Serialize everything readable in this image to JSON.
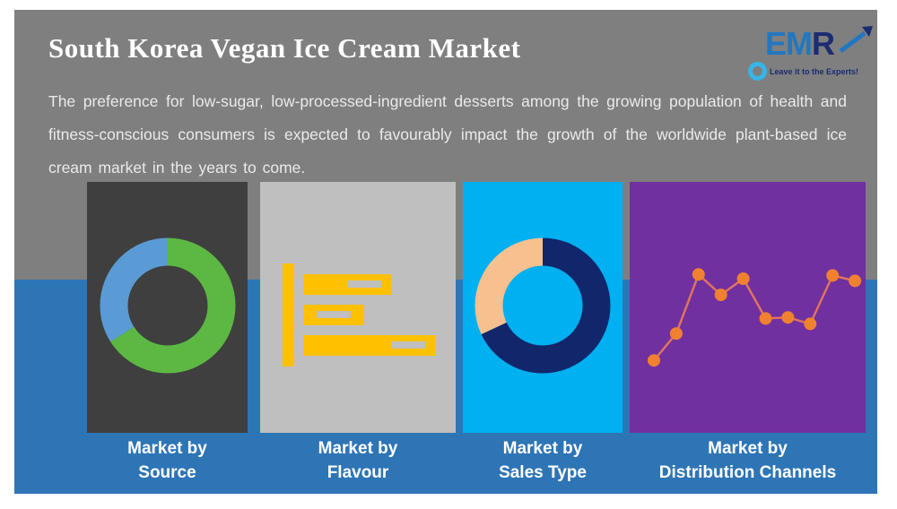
{
  "banner": {
    "title": "South Korea Vegan Ice Cream Market",
    "description": "The preference for low-sugar, low-processed-ingredient desserts among the growing population of health and fitness-conscious consumers is expected to favourably impact the growth of the worldwide plant-based ice cream market in the years to come."
  },
  "logo": {
    "text_em": "EM",
    "text_r": "R",
    "tagline": "Leave it to the Experts!"
  },
  "colors": {
    "bg_top": "#7f7f7f",
    "bg_bottom": "#2e75b6",
    "panel_colors": [
      "#3f3f3f",
      "#bfbfbf",
      "#00b0f0",
      "#7030a0"
    ],
    "donut_green": "#5cb843",
    "donut_blue": "#5b9bd5",
    "donut_navy": "#12266b",
    "donut_peach": "#f7c08f",
    "bar_gold": "#ffc000",
    "line_stroke": "#e0735e",
    "marker_orange": "#f08130",
    "logo_blue": "#2277c0",
    "logo_navy": "#1b2c71",
    "logo_cyan": "#35b6e9"
  },
  "panels": [
    {
      "line1": "Market by",
      "line2": "Source"
    },
    {
      "line1": "Market by",
      "line2": "Flavour"
    },
    {
      "line1": "Market by",
      "line2": "Sales Type"
    },
    {
      "line1": "Market by",
      "line2": "Distribution Channels"
    }
  ],
  "chart_data": [
    {
      "type": "pie",
      "donut": true,
      "title": "Market by Source",
      "labels": [
        "green-segment",
        "blue-segment"
      ],
      "values": [
        66,
        34
      ],
      "colors": [
        "#5cb843",
        "#5b9bd5"
      ],
      "legend_position": "none"
    },
    {
      "type": "bar",
      "orientation": "horizontal",
      "title": "Market by Flavour",
      "categories": [
        "bar-1",
        "bar-2",
        "bar-3"
      ],
      "values": [
        67,
        46,
        100
      ],
      "xlim": [
        0,
        100
      ],
      "color": "#ffc000",
      "grid": false
    },
    {
      "type": "pie",
      "donut": true,
      "title": "Market by Sales Type",
      "labels": [
        "navy-segment",
        "peach-segment"
      ],
      "values": [
        68,
        32
      ],
      "colors": [
        "#12266b",
        "#f7c08f"
      ],
      "legend_position": "none"
    },
    {
      "type": "line",
      "title": "Market by Distribution Channels",
      "x": [
        1,
        2,
        3,
        4,
        5,
        6,
        7,
        8,
        9,
        10
      ],
      "values": [
        9,
        34,
        89,
        70,
        85,
        48,
        49,
        43,
        88,
        83
      ],
      "ylim": [
        0,
        100
      ],
      "line_color": "#e0735e",
      "marker_color": "#f08130",
      "grid": false
    }
  ]
}
